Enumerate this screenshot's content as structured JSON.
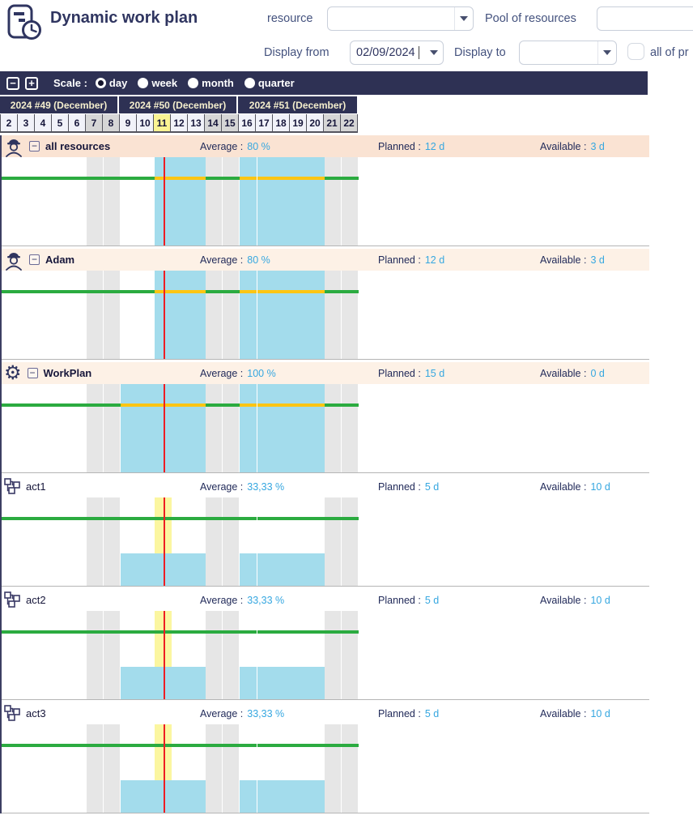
{
  "app": {
    "title": "Dynamic work plan"
  },
  "filters": {
    "resource_label": "resource",
    "resource_value": "",
    "pool_label": "Pool of resources",
    "pool_value": "",
    "display_from_label": "Display from",
    "display_from_value": "02/09/2024",
    "display_to_label": "Display to",
    "display_to_value": "",
    "all_projects_label": "all of pr",
    "all_projects_checked": false
  },
  "toolbar": {
    "zoom_out_label": "−",
    "zoom_in_label": "+",
    "scale_label": "Scale :",
    "scale_options": [
      {
        "label": "day",
        "selected": true
      },
      {
        "label": "week",
        "selected": false
      },
      {
        "label": "month",
        "selected": false
      },
      {
        "label": "quarter",
        "selected": false
      }
    ]
  },
  "calendar": {
    "weeks": [
      "2024 #49 (December)",
      "2024 #50 (December)",
      "2024 #51 (December)"
    ],
    "days": [
      2,
      3,
      4,
      5,
      6,
      7,
      8,
      9,
      10,
      11,
      12,
      13,
      14,
      15,
      16,
      17,
      18,
      19,
      20,
      21,
      22
    ],
    "weekend_days": [
      7,
      8,
      14,
      15,
      21,
      22
    ],
    "today_day": 11
  },
  "row_labels": {
    "average": "Average :",
    "planned": "Planned :",
    "available": "Available :",
    "collapse": "−"
  },
  "rows": [
    {
      "name": "all resources",
      "icon": "worker-icon",
      "group": true,
      "header_bg": "peach-dark",
      "average": "80 %",
      "planned": "12 d",
      "available": "3 d",
      "chart": {
        "full_bars": [
          [
            11,
            13
          ],
          [
            16,
            20
          ]
        ],
        "overload_ranges": [
          [
            11,
            13
          ],
          [
            16,
            20
          ]
        ],
        "partial_bars": [],
        "today_column": false
      }
    },
    {
      "name": "Adam",
      "icon": "worker-icon",
      "group": true,
      "header_bg": "peach-light",
      "average": "80 %",
      "planned": "12 d",
      "available": "3 d",
      "chart": {
        "full_bars": [
          [
            11,
            13
          ],
          [
            16,
            20
          ]
        ],
        "overload_ranges": [
          [
            11,
            13
          ],
          [
            16,
            20
          ]
        ],
        "partial_bars": [],
        "today_column": false
      }
    },
    {
      "name": "WorkPlan",
      "icon": "gear-icon",
      "group": true,
      "header_bg": "peach-light",
      "average": "100 %",
      "planned": "15 d",
      "available": "0 d",
      "chart": {
        "full_bars": [
          [
            9,
            13
          ],
          [
            16,
            20
          ]
        ],
        "overload_ranges": [
          [
            9,
            13
          ],
          [
            16,
            20
          ]
        ],
        "partial_bars": [],
        "today_column": false
      }
    },
    {
      "name": "act1",
      "icon": "activity-icon",
      "group": false,
      "header_bg": "white",
      "average": "33,33 %",
      "planned": "5 d",
      "available": "10 d",
      "chart": {
        "full_bars": [],
        "overload_ranges": [],
        "partial_bars": [
          [
            9,
            13
          ],
          [
            16,
            20
          ]
        ],
        "today_column": true
      }
    },
    {
      "name": "act2",
      "icon": "activity-icon",
      "group": false,
      "header_bg": "white",
      "average": "33,33 %",
      "planned": "5 d",
      "available": "10 d",
      "chart": {
        "full_bars": [],
        "overload_ranges": [],
        "partial_bars": [
          [
            9,
            13
          ],
          [
            16,
            20
          ]
        ],
        "today_column": true
      }
    },
    {
      "name": "act3",
      "icon": "activity-icon",
      "group": false,
      "header_bg": "white",
      "average": "33,33 %",
      "planned": "5 d",
      "available": "10 d",
      "chart": {
        "full_bars": [],
        "overload_ranges": [],
        "partial_bars": [
          [
            9,
            13
          ],
          [
            16,
            20
          ]
        ],
        "today_column": true
      }
    }
  ],
  "colors": {
    "bar_blue": "#a3dcec",
    "capacity_green": "#2bab40",
    "overload_yellow": "#fdc513",
    "today_red": "#ee1d23",
    "today_cell_yellow": "#fbf6a0",
    "weekend_gray": "#e6e6e6",
    "header_navy": "#2e3154",
    "peach_dark": "#fae3d3",
    "peach_light": "#fdf1e6",
    "value_cyan": "#36a7e0"
  }
}
